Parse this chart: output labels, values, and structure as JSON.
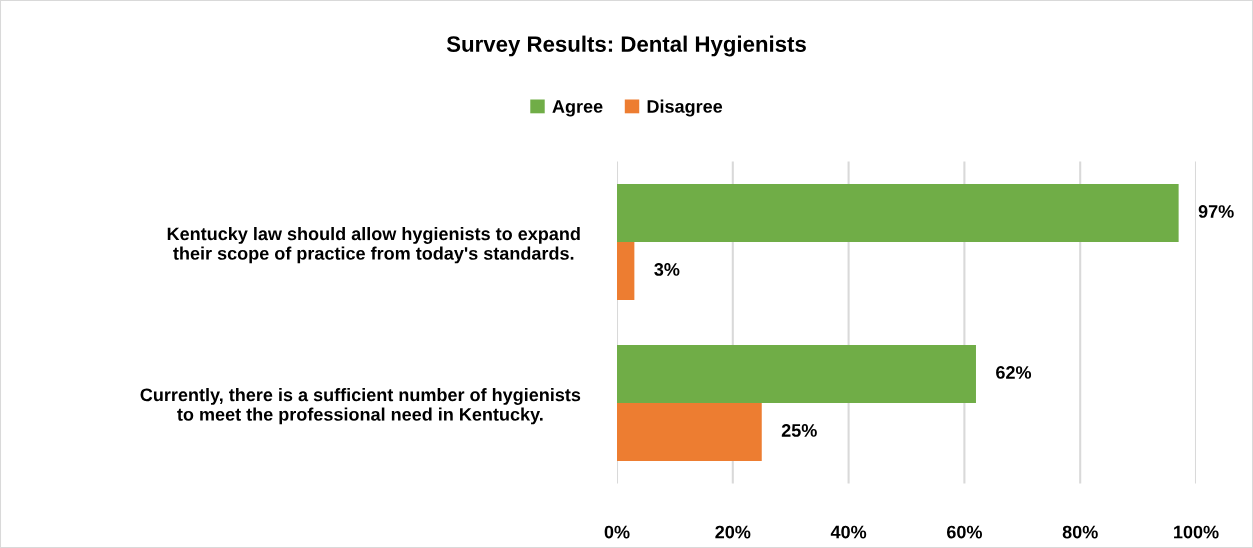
{
  "chart_data": {
    "type": "bar",
    "orientation": "horizontal",
    "title": "Survey Results: Dental Hygienists",
    "categories": [
      "Kentucky law should allow hygienists to expand\ntheir scope of practice from today's standards.",
      "Currently, there is a sufficient number of hygienists\nto meet the professional need in Kentucky."
    ],
    "series": [
      {
        "name": "Agree",
        "color": "#70ad47",
        "values": [
          97,
          62
        ],
        "value_labels": [
          "97%",
          "62%"
        ]
      },
      {
        "name": "Disagree",
        "color": "#ed7d31",
        "values": [
          3,
          25
        ],
        "value_labels": [
          "3%",
          "25%"
        ]
      }
    ],
    "xlim": [
      0,
      100
    ],
    "xticks": [
      {
        "value": 0,
        "label": "0%"
      },
      {
        "value": 20,
        "label": "20%"
      },
      {
        "value": 40,
        "label": "40%"
      },
      {
        "value": 60,
        "label": "60%"
      },
      {
        "value": 80,
        "label": "80%"
      },
      {
        "value": 100,
        "label": "100%"
      }
    ],
    "grid": "x",
    "legend": "top"
  }
}
